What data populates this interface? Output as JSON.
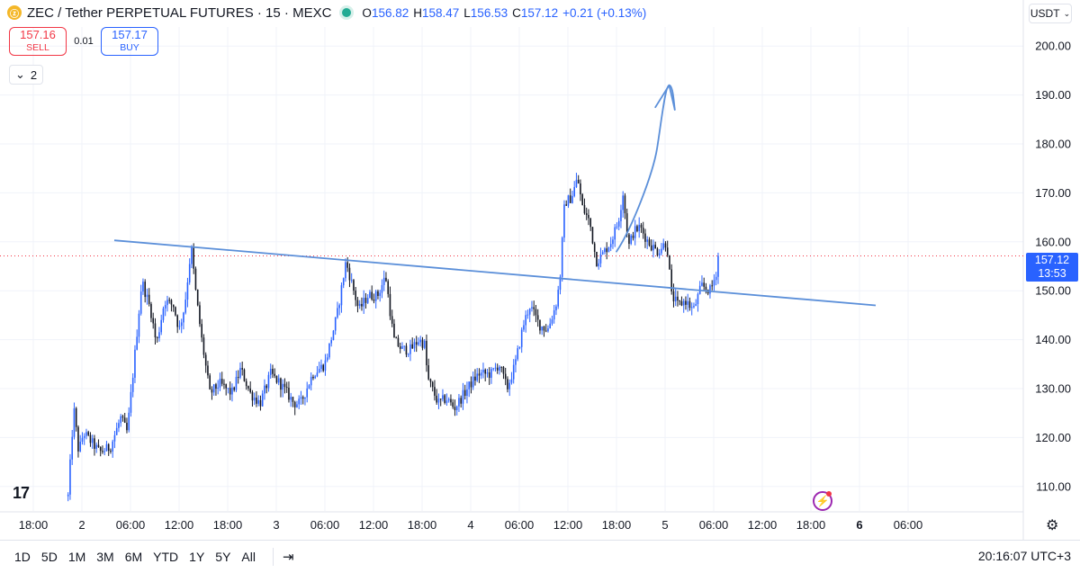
{
  "header": {
    "coin_icon": "zec-coin-icon",
    "title": "ZEC / Tether PERPETUAL FUTURES · 15 · MEXC",
    "status_color": "#22ab94",
    "o_label": "O",
    "o_value": "156.82",
    "h_label": "H",
    "h_value": "158.47",
    "l_label": "L",
    "l_value": "156.53",
    "c_label": "C",
    "c_value": "157.12",
    "change": "+0.21 (+0.13%)"
  },
  "trade": {
    "sell_price": "157.16",
    "sell_label": "SELL",
    "spread": "0.01",
    "buy_price": "157.17",
    "buy_label": "BUY"
  },
  "indicators_toggle": {
    "icon": "chevron-down-icon",
    "count": "2"
  },
  "currency_selector": {
    "label": "USDT",
    "icon": "chevron-down-icon"
  },
  "price_tag": {
    "price": "157.12",
    "countdown": "13:53"
  },
  "bottom_bar": {
    "ranges": [
      "1D",
      "5D",
      "1M",
      "3M",
      "6M",
      "YTD",
      "1Y",
      "5Y",
      "All"
    ],
    "goto_icon": "goto-date-icon",
    "clock": "20:16:07 UTC+3"
  },
  "colors": {
    "up": "#2962ff",
    "down": "#131722",
    "drawing": "#5b8fd9",
    "grid": "#f0f3fa",
    "last_price_line": "#f23645",
    "accent": "#2962ff"
  },
  "chart_data": {
    "type": "candlestick",
    "y_axis": {
      "min": 105,
      "max": 205,
      "ticks": [
        110,
        120,
        130,
        140,
        150,
        160,
        170,
        180,
        190,
        200
      ],
      "tick_labels": [
        "110.00",
        "120.00",
        "130.00",
        "140.00",
        "150.00",
        "160.00",
        "170.00",
        "180.00",
        "190.00",
        "200.00"
      ]
    },
    "x_axis": {
      "unit": "hours from Dec 1 18:00",
      "ticks": [
        0,
        6,
        12,
        18,
        24,
        30,
        36,
        42,
        48,
        54,
        60,
        66,
        72,
        78,
        84,
        90,
        96,
        102,
        108
      ],
      "tick_labels": [
        "18:00",
        "2",
        "06:00",
        "12:00",
        "18:00",
        "3",
        "06:00",
        "12:00",
        "18:00",
        "4",
        "06:00",
        "12:00",
        "18:00",
        "5",
        "06:00",
        "12:00",
        "18:00",
        "6",
        "06:00"
      ],
      "bold_labels": [
        "6"
      ]
    },
    "last_price": 157.12,
    "price_path": [
      [
        4.3,
        108
      ],
      [
        5.0,
        126
      ],
      [
        5.6,
        117
      ],
      [
        6.2,
        121
      ],
      [
        7.2,
        119
      ],
      [
        8.2,
        117
      ],
      [
        9.5,
        118
      ],
      [
        10.8,
        124
      ],
      [
        11.6,
        121
      ],
      [
        12.6,
        138
      ],
      [
        13.4,
        152
      ],
      [
        14.5,
        146
      ],
      [
        15.2,
        139
      ],
      [
        16.2,
        148
      ],
      [
        17.3,
        147
      ],
      [
        18.0,
        142
      ],
      [
        18.7,
        147
      ],
      [
        19.5,
        159
      ],
      [
        20.1,
        149
      ],
      [
        20.8,
        140
      ],
      [
        21.8,
        129
      ],
      [
        23.0,
        131
      ],
      [
        24.5,
        129
      ],
      [
        25.6,
        134
      ],
      [
        26.8,
        129
      ],
      [
        28.0,
        127
      ],
      [
        29.3,
        133
      ],
      [
        30.5,
        131
      ],
      [
        32.2,
        127
      ],
      [
        33.0,
        127
      ],
      [
        34.5,
        133
      ],
      [
        36.0,
        135
      ],
      [
        37.5,
        145
      ],
      [
        38.6,
        156
      ],
      [
        39.4,
        151
      ],
      [
        40.2,
        146
      ],
      [
        41.3,
        149
      ],
      [
        42.5,
        149
      ],
      [
        43.5,
        153
      ],
      [
        44.5,
        140
      ],
      [
        45.5,
        138
      ],
      [
        46.6,
        138
      ],
      [
        47.6,
        140
      ],
      [
        48.3,
        139
      ],
      [
        48.7,
        132
      ],
      [
        50.0,
        127
      ],
      [
        51.0,
        128
      ],
      [
        52.0,
        126
      ],
      [
        52.8,
        128
      ],
      [
        54.0,
        131
      ],
      [
        55.0,
        133
      ],
      [
        56.5,
        133
      ],
      [
        57.5,
        135
      ],
      [
        58.5,
        130
      ],
      [
        59.5,
        135
      ],
      [
        60.5,
        143
      ],
      [
        61.3,
        147
      ],
      [
        62.5,
        143
      ],
      [
        63.5,
        142
      ],
      [
        64.5,
        147
      ],
      [
        65.0,
        152
      ],
      [
        65.6,
        168
      ],
      [
        66.4,
        169
      ],
      [
        67.2,
        173
      ],
      [
        67.8,
        167
      ],
      [
        68.7,
        164
      ],
      [
        69.5,
        156
      ],
      [
        70.1,
        157
      ],
      [
        71.3,
        160
      ],
      [
        72.2,
        164
      ],
      [
        72.8,
        170
      ],
      [
        73.5,
        159
      ],
      [
        74.1,
        162
      ],
      [
        74.9,
        163
      ],
      [
        75.9,
        160
      ],
      [
        77.0,
        158
      ],
      [
        78.2,
        160
      ],
      [
        78.8,
        149
      ],
      [
        79.6,
        147
      ],
      [
        80.5,
        148
      ],
      [
        81.5,
        146
      ],
      [
        82.5,
        151
      ],
      [
        83.6,
        150
      ],
      [
        84.2,
        153
      ],
      [
        84.7,
        157
      ]
    ],
    "drawings": {
      "trendline": {
        "start": [
          10,
          160.3
        ],
        "end": [
          104,
          147
        ]
      },
      "projection_path": [
        [
          72,
          158
        ],
        [
          75,
          166
        ],
        [
          77,
          179
        ],
        [
          78.5,
          192
        ],
        [
          79.2,
          187
        ]
      ],
      "arrowhead": [
        [
          76.8,
          187.5
        ],
        [
          78.5,
          192
        ],
        [
          79.2,
          187
        ]
      ]
    }
  }
}
